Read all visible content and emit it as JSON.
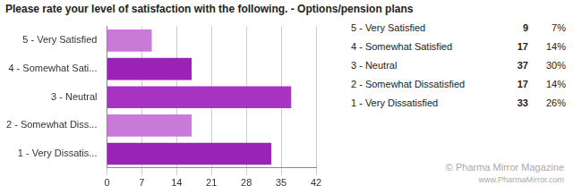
{
  "chart_data": {
    "type": "bar",
    "title": "Please rate your level of satisfaction with the following. - Options/pension plans",
    "orientation": "horizontal",
    "categories": [
      "5 - Very Satisfied",
      "4 - Somewhat Sati...",
      "3 - Neutral",
      "2 - Somewhat Diss...",
      "1 - Very Dissatis..."
    ],
    "values": [
      9,
      17,
      37,
      17,
      33
    ],
    "colors": [
      "#c97ad8",
      "#9b22b7",
      "#a633c2",
      "#c97ad8",
      "#9b22b7"
    ],
    "xlim": [
      0,
      42
    ],
    "xticks": [
      0,
      7,
      14,
      21,
      28,
      35,
      42
    ],
    "grid": true,
    "table": {
      "rows": [
        {
          "label": "5 - Very Satisfied",
          "count": 9,
          "percent": "7%"
        },
        {
          "label": "4 - Somewhat Satisfied",
          "count": 17,
          "percent": "14%"
        },
        {
          "label": "3 - Neutral",
          "count": 37,
          "percent": "30%"
        },
        {
          "label": "2 - Somewhat Dissatisfied",
          "count": 17,
          "percent": "14%"
        },
        {
          "label": "1 - Very Dissatisfied",
          "count": 33,
          "percent": "26%"
        }
      ]
    },
    "annotations": [
      "© Pharma Mirror Magazine",
      "www.PharmaMirror.com"
    ]
  }
}
